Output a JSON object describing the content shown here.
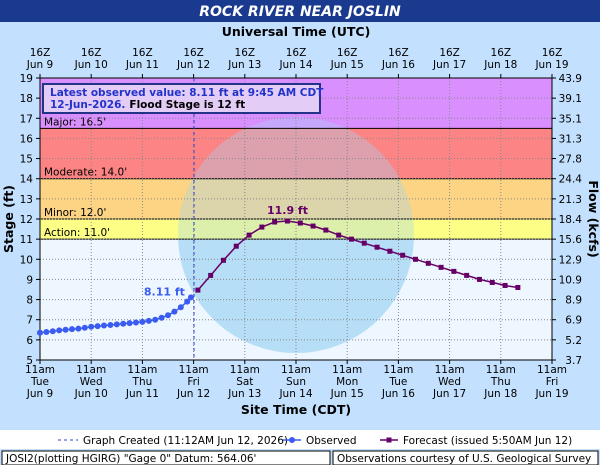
{
  "chart_data": {
    "type": "line",
    "title": "ROCK RIVER NEAR JOSLIN",
    "top_axis_label": "Universal Time (UTC)",
    "x_axis_label": "Site Time (CDT)",
    "y_axis_label": "Stage (ft)",
    "y2_axis_label": "Flow (kcfs)",
    "xlim": [
      "2026-06-09T11:00",
      "2026-06-19T11:00"
    ],
    "xticks": [
      {
        "value": "2026-06-09T11:00",
        "label": [
          "11am",
          "Tue",
          "Jun 9"
        ]
      },
      {
        "value": "2026-06-10T11:00",
        "label": [
          "11am",
          "Wed",
          "Jun 10"
        ]
      },
      {
        "value": "2026-06-11T11:00",
        "label": [
          "11am",
          "Thu",
          "Jun 11"
        ]
      },
      {
        "value": "2026-06-12T11:00",
        "label": [
          "11am",
          "Fri",
          "Jun 12"
        ]
      },
      {
        "value": "2026-06-13T11:00",
        "label": [
          "11am",
          "Sat",
          "Jun 13"
        ]
      },
      {
        "value": "2026-06-14T11:00",
        "label": [
          "11am",
          "Sun",
          "Jun 14"
        ]
      },
      {
        "value": "2026-06-15T11:00",
        "label": [
          "11am",
          "Mon",
          "Jun 15"
        ]
      },
      {
        "value": "2026-06-16T11:00",
        "label": [
          "11am",
          "Tue",
          "Jun 16"
        ]
      },
      {
        "value": "2026-06-17T11:00",
        "label": [
          "11am",
          "Wed",
          "Jun 17"
        ]
      },
      {
        "value": "2026-06-18T11:00",
        "label": [
          "11am",
          "Thu",
          "Jun 18"
        ]
      },
      {
        "value": "2026-06-19T11:00",
        "label": [
          "11am",
          "Fri",
          "Jun 19"
        ]
      }
    ],
    "x2ticks": [
      {
        "value": "2026-06-09T11:00",
        "label": [
          "16Z",
          "Jun 9"
        ]
      },
      {
        "value": "2026-06-10T11:00",
        "label": [
          "16Z",
          "Jun 10"
        ]
      },
      {
        "value": "2026-06-11T11:00",
        "label": [
          "16Z",
          "Jun 11"
        ]
      },
      {
        "value": "2026-06-12T11:00",
        "label": [
          "16Z",
          "Jun 12"
        ]
      },
      {
        "value": "2026-06-13T11:00",
        "label": [
          "16Z",
          "Jun 13"
        ]
      },
      {
        "value": "2026-06-14T11:00",
        "label": [
          "16Z",
          "Jun 14"
        ]
      },
      {
        "value": "2026-06-15T11:00",
        "label": [
          "16Z",
          "Jun 15"
        ]
      },
      {
        "value": "2026-06-16T11:00",
        "label": [
          "16Z",
          "Jun 16"
        ]
      },
      {
        "value": "2026-06-17T11:00",
        "label": [
          "16Z",
          "Jun 17"
        ]
      },
      {
        "value": "2026-06-18T11:00",
        "label": [
          "16Z",
          "Jun 18"
        ]
      },
      {
        "value": "2026-06-19T11:00",
        "label": [
          "16Z",
          "Jun 19"
        ]
      }
    ],
    "ylim": [
      5,
      19
    ],
    "yticks": [
      19,
      18,
      17,
      16,
      15,
      14,
      13,
      12,
      11,
      10,
      9,
      8,
      7,
      6,
      5
    ],
    "y2lim": [
      3.7,
      43.9
    ],
    "y2ticks": [
      43.9,
      39.1,
      35.1,
      31.3,
      27.8,
      24.4,
      21.3,
      18.4,
      15.6,
      12.9,
      10.9,
      8.9,
      6.9,
      5.2,
      3.7
    ],
    "grid": true,
    "thresholds": [
      {
        "label": "Action: 11.0'",
        "value": 11,
        "color": "#ffff70"
      },
      {
        "label": "Minor: 12.0'",
        "value": 12,
        "color": "#ffcc6e"
      },
      {
        "label": "Moderate: 14.0'",
        "value": 14,
        "color": "#ff7070"
      },
      {
        "label": "Major: 16.5'",
        "value": 16.5,
        "color": "#d67cff"
      }
    ],
    "series": [
      {
        "name": "Observed",
        "color": "#3a5cf0",
        "marker": "circle",
        "x": [
          "2026-06-09T11:00",
          "2026-06-09T14:00",
          "2026-06-09T17:00",
          "2026-06-09T20:00",
          "2026-06-09T23:00",
          "2026-06-10T02:00",
          "2026-06-10T05:00",
          "2026-06-10T08:00",
          "2026-06-10T11:00",
          "2026-06-10T14:00",
          "2026-06-10T17:00",
          "2026-06-10T20:00",
          "2026-06-10T23:00",
          "2026-06-11T02:00",
          "2026-06-11T05:00",
          "2026-06-11T08:00",
          "2026-06-11T11:00",
          "2026-06-11T14:00",
          "2026-06-11T17:00",
          "2026-06-11T20:00",
          "2026-06-11T23:00",
          "2026-06-12T02:00",
          "2026-06-12T05:00",
          "2026-06-12T08:00",
          "2026-06-12T09:45"
        ],
        "values": [
          6.35,
          6.39,
          6.43,
          6.47,
          6.5,
          6.53,
          6.56,
          6.6,
          6.65,
          6.68,
          6.71,
          6.74,
          6.77,
          6.8,
          6.83,
          6.86,
          6.89,
          6.94,
          7.0,
          7.1,
          7.22,
          7.4,
          7.62,
          7.9,
          8.11
        ]
      },
      {
        "name": "Forecast (issued 5:50AM Jun 12)",
        "color": "#660066",
        "marker": "square",
        "x": [
          "2026-06-12T13:00",
          "2026-06-12T19:00",
          "2026-06-13T01:00",
          "2026-06-13T07:00",
          "2026-06-13T13:00",
          "2026-06-13T19:00",
          "2026-06-14T01:00",
          "2026-06-14T07:00",
          "2026-06-14T13:00",
          "2026-06-14T19:00",
          "2026-06-15T01:00",
          "2026-06-15T07:00",
          "2026-06-15T13:00",
          "2026-06-15T19:00",
          "2026-06-16T01:00",
          "2026-06-16T07:00",
          "2026-06-16T13:00",
          "2026-06-16T19:00",
          "2026-06-17T01:00",
          "2026-06-17T07:00",
          "2026-06-17T13:00",
          "2026-06-17T19:00",
          "2026-06-18T01:00",
          "2026-06-18T07:00",
          "2026-06-18T13:00",
          "2026-06-18T19:00"
        ],
        "values": [
          8.47,
          9.2,
          9.95,
          10.65,
          11.2,
          11.6,
          11.85,
          11.9,
          11.8,
          11.65,
          11.45,
          11.2,
          11.0,
          10.8,
          10.6,
          10.4,
          10.2,
          10.0,
          9.8,
          9.6,
          9.4,
          9.2,
          9.0,
          8.85,
          8.7,
          8.6
        ]
      }
    ],
    "annotations": [
      {
        "text": "8.11 ft",
        "x": "2026-06-12T09:45",
        "y": 8.11,
        "color": "#3a5cf0"
      },
      {
        "text": "11.9 ft",
        "x": "2026-06-14T07:00",
        "y": 11.9,
        "color": "#660066"
      }
    ],
    "info_box": {
      "line1": "Latest observed value: 8.11 ft at 9:45 AM CDT",
      "line2a": "12-Jun-2026.",
      "line2b": "Flood Stage is 12 ft"
    },
    "graph_created": {
      "label": "Graph Created (11:12AM Jun 12, 2026)",
      "x": "2026-06-12T11:12"
    },
    "footer_left": "JOSI2(plotting HGIRG) \"Gage 0\" Datum: 564.06'",
    "footer_right": "Observations courtesy of U.S. Geological Survey"
  }
}
